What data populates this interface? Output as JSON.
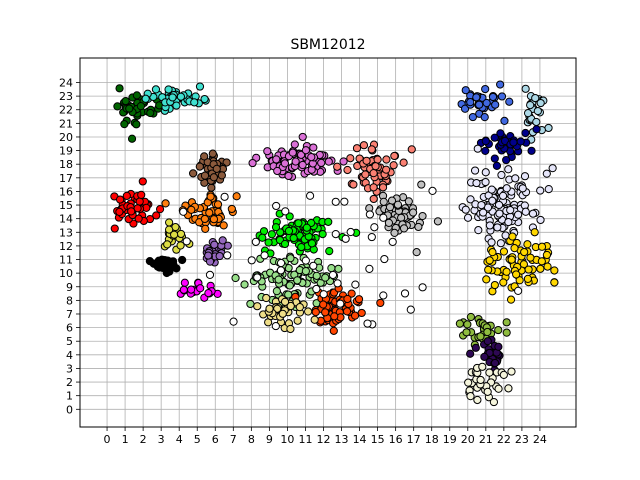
{
  "chart_data": {
    "type": "scatter",
    "title": "SBM12012",
    "xlabel": "",
    "ylabel": "",
    "xlim": [
      -1.5,
      26.0
    ],
    "ylim": [
      -1.3,
      25.8
    ],
    "xticks": [
      0,
      1,
      2,
      3,
      4,
      5,
      6,
      7,
      8,
      9,
      10,
      11,
      12,
      13,
      14,
      15,
      16,
      17,
      18,
      19,
      20,
      21,
      22,
      23,
      24
    ],
    "yticks": [
      0,
      1,
      2,
      3,
      4,
      5,
      6,
      7,
      8,
      9,
      10,
      11,
      12,
      13,
      14,
      15,
      16,
      17,
      18,
      19,
      20,
      21,
      22,
      23,
      24
    ],
    "grid": true,
    "legend": "none",
    "marker_edge_color": "#000000",
    "clusters": [
      {
        "color": "#006400",
        "center": [
          1.7,
          22.2
        ],
        "spread": [
          0.9,
          1.0
        ],
        "count": 45
      },
      {
        "color": "#40e0d0",
        "center": [
          3.8,
          22.7
        ],
        "spread": [
          1.2,
          0.8
        ],
        "count": 40
      },
      {
        "color": "#ff0000",
        "center": [
          1.5,
          14.8
        ],
        "spread": [
          0.9,
          1.1
        ],
        "count": 45
      },
      {
        "color": "#000000",
        "center": [
          3.2,
          10.6
        ],
        "spread": [
          0.7,
          0.4
        ],
        "count": 30
      },
      {
        "color": "#ff00ff",
        "center": [
          5.1,
          8.7
        ],
        "spread": [
          0.9,
          0.4
        ],
        "count": 20
      },
      {
        "color": "#dddd44",
        "center": [
          3.7,
          12.5
        ],
        "spread": [
          0.6,
          0.9
        ],
        "count": 20
      },
      {
        "color": "#9467bd",
        "center": [
          5.8,
          11.5
        ],
        "spread": [
          0.7,
          0.8
        ],
        "count": 30
      },
      {
        "color": "#ff7f0e",
        "center": [
          5.6,
          14.5
        ],
        "spread": [
          1.3,
          0.9
        ],
        "count": 45
      },
      {
        "color": "#8b5a3c",
        "center": [
          5.8,
          17.6
        ],
        "spread": [
          0.9,
          1.0
        ],
        "count": 35
      },
      {
        "color": "#da70d6",
        "center": [
          10.5,
          18.1
        ],
        "spread": [
          1.8,
          1.2
        ],
        "count": 80
      },
      {
        "color": "#fa8072",
        "center": [
          14.7,
          17.5
        ],
        "spread": [
          1.3,
          1.3
        ],
        "count": 60
      },
      {
        "color": "#c0c0c0",
        "center": [
          16.2,
          14.4
        ],
        "spread": [
          1.2,
          1.3
        ],
        "count": 55
      },
      {
        "color": "#00ee00",
        "center": [
          10.8,
          13.0
        ],
        "spread": [
          1.5,
          1.1
        ],
        "count": 80
      },
      {
        "color": "#98df8a",
        "center": [
          10.2,
          9.6
        ],
        "spread": [
          2.0,
          1.3
        ],
        "count": 90
      },
      {
        "color": "#ff4500",
        "center": [
          12.7,
          7.4
        ],
        "spread": [
          1.2,
          1.2
        ],
        "count": 55
      },
      {
        "color": "#eedd88",
        "center": [
          10.0,
          7.0
        ],
        "spread": [
          1.5,
          1.0
        ],
        "count": 40
      },
      {
        "color": "#4169e1",
        "center": [
          20.7,
          22.5
        ],
        "spread": [
          1.2,
          1.0
        ],
        "count": 35
      },
      {
        "color": "#add8e6",
        "center": [
          23.5,
          21.5
        ],
        "spread": [
          0.6,
          1.4
        ],
        "count": 25
      },
      {
        "color": "#00008b",
        "center": [
          22.0,
          19.5
        ],
        "spread": [
          1.2,
          0.9
        ],
        "count": 40
      },
      {
        "color": "#e6e6fa",
        "center": [
          22.0,
          15.0
        ],
        "spread": [
          1.8,
          2.2
        ],
        "count": 110
      },
      {
        "color": "#ffd700",
        "center": [
          22.8,
          10.6
        ],
        "spread": [
          1.5,
          1.6
        ],
        "count": 70
      },
      {
        "color": "#8fbc3f",
        "center": [
          20.8,
          6.0
        ],
        "spread": [
          0.9,
          0.9
        ],
        "count": 30
      },
      {
        "color": "#2e0854",
        "center": [
          21.2,
          4.0
        ],
        "spread": [
          0.7,
          0.7
        ],
        "count": 25
      },
      {
        "color": "#f5f5dc",
        "center": [
          21.0,
          1.9
        ],
        "spread": [
          1.0,
          1.2
        ],
        "count": 30
      },
      {
        "color": "#ffffff",
        "center": [
          12.0,
          12.0
        ],
        "spread": [
          7.0,
          6.0
        ],
        "count": 45
      }
    ]
  }
}
